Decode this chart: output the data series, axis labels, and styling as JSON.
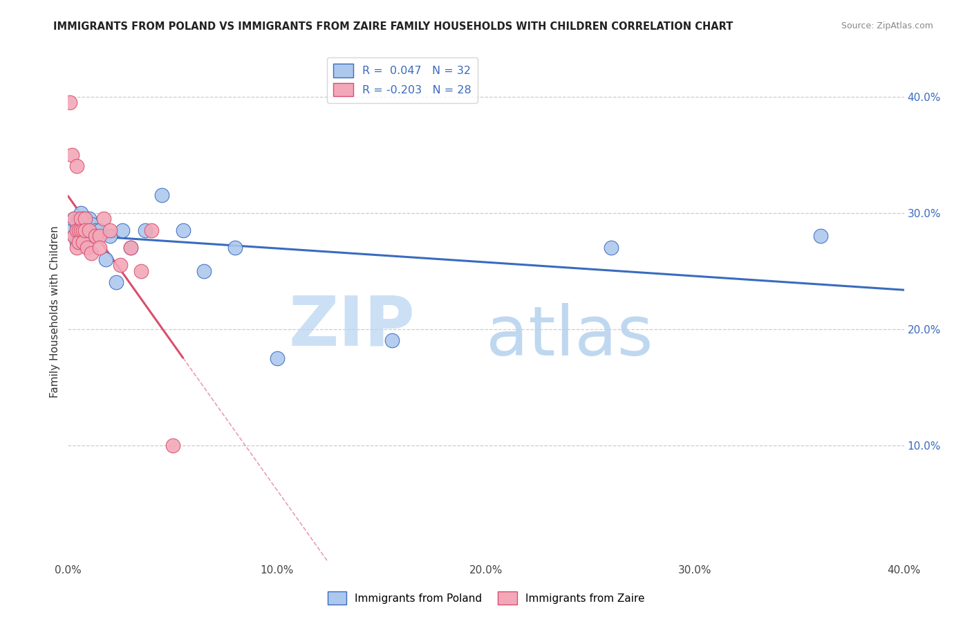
{
  "title": "IMMIGRANTS FROM POLAND VS IMMIGRANTS FROM ZAIRE FAMILY HOUSEHOLDS WITH CHILDREN CORRELATION CHART",
  "source": "Source: ZipAtlas.com",
  "ylabel": "Family Households with Children",
  "legend_label1": "Immigrants from Poland",
  "legend_label2": "Immigrants from Zaire",
  "r1": 0.047,
  "n1": 32,
  "r2": -0.203,
  "n2": 28,
  "color_blue": "#adc8ed",
  "color_pink": "#f2a8b8",
  "line_blue": "#3a6bbf",
  "line_pink": "#d94f6e",
  "poland_x": [
    0.002,
    0.003,
    0.003,
    0.004,
    0.004,
    0.005,
    0.005,
    0.006,
    0.006,
    0.007,
    0.007,
    0.008,
    0.009,
    0.01,
    0.01,
    0.011,
    0.013,
    0.015,
    0.018,
    0.02,
    0.023,
    0.026,
    0.03,
    0.037,
    0.045,
    0.055,
    0.065,
    0.08,
    0.1,
    0.155,
    0.26,
    0.36
  ],
  "poland_y": [
    0.285,
    0.295,
    0.28,
    0.29,
    0.275,
    0.295,
    0.285,
    0.3,
    0.285,
    0.295,
    0.29,
    0.285,
    0.28,
    0.285,
    0.295,
    0.29,
    0.285,
    0.285,
    0.26,
    0.28,
    0.24,
    0.285,
    0.27,
    0.285,
    0.315,
    0.285,
    0.25,
    0.27,
    0.175,
    0.19,
    0.27,
    0.28
  ],
  "zaire_x": [
    0.001,
    0.002,
    0.003,
    0.003,
    0.004,
    0.004,
    0.004,
    0.005,
    0.005,
    0.006,
    0.006,
    0.007,
    0.007,
    0.008,
    0.008,
    0.009,
    0.01,
    0.011,
    0.013,
    0.015,
    0.015,
    0.017,
    0.02,
    0.025,
    0.03,
    0.035,
    0.04,
    0.05
  ],
  "zaire_y": [
    0.395,
    0.35,
    0.295,
    0.28,
    0.285,
    0.27,
    0.34,
    0.285,
    0.275,
    0.285,
    0.295,
    0.285,
    0.275,
    0.295,
    0.285,
    0.27,
    0.285,
    0.265,
    0.28,
    0.28,
    0.27,
    0.295,
    0.285,
    0.255,
    0.27,
    0.25,
    0.285,
    0.1
  ],
  "xmin": 0.0,
  "xmax": 0.4,
  "ymin": 0.0,
  "ymax": 0.43,
  "background": "#ffffff",
  "right_ytick_vals": [
    0.1,
    0.2,
    0.3,
    0.4
  ],
  "right_ytick_labels": [
    "10.0%",
    "20.0%",
    "30.0%",
    "40.0%"
  ],
  "xtick_vals": [
    0.0,
    0.1,
    0.2,
    0.3,
    0.4
  ],
  "xtick_labels": [
    "0.0%",
    "10.0%",
    "20.0%",
    "30.0%",
    "40.0%"
  ]
}
